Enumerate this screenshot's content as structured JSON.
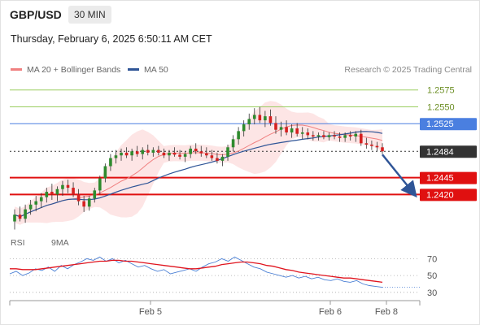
{
  "header": {
    "pair": "GBP/USD",
    "interval": "30 MIN",
    "datetime": "Thursday, February 6, 2025 6:50:11 AM CET"
  },
  "legend": {
    "items": [
      {
        "label": "MA 20 + Bollinger Bands",
        "color": "#f08080"
      },
      {
        "label": "MA 50",
        "color": "#2f5597"
      }
    ],
    "credit": "Research © 2025 Trading Central"
  },
  "rsi_legend": {
    "items": [
      {
        "label": "RSI",
        "color": "#4a7fd4"
      },
      {
        "label": "9MA",
        "color": "#e0141e"
      }
    ]
  },
  "chart_data": [
    {
      "type": "candlestick",
      "title": "GBP/USD",
      "ylim": [
        1.2365,
        1.26
      ],
      "levels": [
        {
          "value": 1.2575,
          "kind": "resistance",
          "color": "#9acd60"
        },
        {
          "value": 1.255,
          "kind": "resistance",
          "color": "#9acd60"
        },
        {
          "value": 1.2525,
          "kind": "pivot",
          "color": "#4a7fe0"
        },
        {
          "value": 1.2484,
          "kind": "last",
          "color": "#333333"
        },
        {
          "value": 1.2445,
          "kind": "target",
          "color": "#e01010"
        },
        {
          "value": 1.242,
          "kind": "target",
          "color": "#e01010"
        }
      ],
      "x_tick_labels": [
        "Feb 5",
        "Feb 6",
        "Feb 8"
      ],
      "forecast_arrow": {
        "from": 1.2484,
        "to": 1.242
      },
      "candles": [
        [
          1.238,
          1.2398,
          1.2368,
          1.239
        ],
        [
          1.239,
          1.2402,
          1.238,
          1.2384
        ],
        [
          1.2384,
          1.2405,
          1.2378,
          1.2398
        ],
        [
          1.2398,
          1.2412,
          1.239,
          1.2405
        ],
        [
          1.2405,
          1.2418,
          1.2395,
          1.241
        ],
        [
          1.241,
          1.2422,
          1.24,
          1.2416
        ],
        [
          1.2416,
          1.243,
          1.2408,
          1.2424
        ],
        [
          1.2424,
          1.2436,
          1.2412,
          1.242
        ],
        [
          1.242,
          1.2432,
          1.241,
          1.2428
        ],
        [
          1.2428,
          1.244,
          1.2418,
          1.2434
        ],
        [
          1.2434,
          1.2442,
          1.2422,
          1.243
        ],
        [
          1.243,
          1.2438,
          1.2416,
          1.242
        ],
        [
          1.242,
          1.2428,
          1.2404,
          1.241
        ],
        [
          1.241,
          1.2418,
          1.2394,
          1.2402
        ],
        [
          1.2402,
          1.2418,
          1.2396,
          1.2414
        ],
        [
          1.2414,
          1.243,
          1.2408,
          1.2426
        ],
        [
          1.2426,
          1.2448,
          1.242,
          1.2444
        ],
        [
          1.2444,
          1.2466,
          1.2438,
          1.2462
        ],
        [
          1.2462,
          1.248,
          1.2455,
          1.2474
        ],
        [
          1.2474,
          1.2486,
          1.2466,
          1.2478
        ],
        [
          1.2478,
          1.2488,
          1.247,
          1.2482
        ],
        [
          1.2482,
          1.249,
          1.2474,
          1.2478
        ],
        [
          1.2478,
          1.2488,
          1.247,
          1.2484
        ],
        [
          1.2484,
          1.2492,
          1.2476,
          1.248
        ],
        [
          1.248,
          1.249,
          1.2472,
          1.2486
        ],
        [
          1.2486,
          1.2494,
          1.2478,
          1.2482
        ],
        [
          1.2482,
          1.249,
          1.2476,
          1.2486
        ],
        [
          1.2486,
          1.2492,
          1.2478,
          1.2482
        ],
        [
          1.2482,
          1.2488,
          1.2474,
          1.2478
        ],
        [
          1.2478,
          1.2486,
          1.247,
          1.2482
        ],
        [
          1.2482,
          1.249,
          1.2476,
          1.2479
        ],
        [
          1.2479,
          1.2486,
          1.2472,
          1.2476
        ],
        [
          1.2476,
          1.2484,
          1.2468,
          1.248
        ],
        [
          1.248,
          1.2492,
          1.2474,
          1.2488
        ],
        [
          1.2488,
          1.2496,
          1.248,
          1.2484
        ],
        [
          1.2484,
          1.2492,
          1.2476,
          1.2481
        ],
        [
          1.2481,
          1.249,
          1.2474,
          1.2478
        ],
        [
          1.2478,
          1.2486,
          1.247,
          1.2474
        ],
        [
          1.2474,
          1.2482,
          1.2466,
          1.247
        ],
        [
          1.247,
          1.248,
          1.2462,
          1.2476
        ],
        [
          1.2476,
          1.2494,
          1.247,
          1.249
        ],
        [
          1.249,
          1.2508,
          1.2484,
          1.2502
        ],
        [
          1.2502,
          1.252,
          1.2494,
          1.2514
        ],
        [
          1.2514,
          1.253,
          1.2506,
          1.2524
        ],
        [
          1.2524,
          1.254,
          1.2516,
          1.2532
        ],
        [
          1.2532,
          1.2548,
          1.2524,
          1.2538
        ],
        [
          1.2538,
          1.255,
          1.2526,
          1.253
        ],
        [
          1.253,
          1.2544,
          1.252,
          1.2536
        ],
        [
          1.2536,
          1.2546,
          1.2522,
          1.2526
        ],
        [
          1.2526,
          1.2536,
          1.251,
          1.2516
        ],
        [
          1.2516,
          1.2528,
          1.2506,
          1.252
        ],
        [
          1.252,
          1.253,
          1.2508,
          1.2512
        ],
        [
          1.2512,
          1.2524,
          1.2504,
          1.2518
        ],
        [
          1.2518,
          1.2526,
          1.2506,
          1.251
        ],
        [
          1.251,
          1.252,
          1.2502,
          1.2512
        ],
        [
          1.2512,
          1.2518,
          1.2502,
          1.2508
        ],
        [
          1.2508,
          1.2514,
          1.25,
          1.2506
        ],
        [
          1.2506,
          1.2512,
          1.25,
          1.2508
        ],
        [
          1.2508,
          1.2514,
          1.2502,
          1.2505
        ],
        [
          1.2505,
          1.2512,
          1.25,
          1.2508
        ],
        [
          1.2508,
          1.2514,
          1.2502,
          1.2506
        ],
        [
          1.2506,
          1.2512,
          1.2498,
          1.2504
        ],
        [
          1.2504,
          1.2512,
          1.2498,
          1.2508
        ],
        [
          1.2508,
          1.2514,
          1.25,
          1.2506
        ],
        [
          1.2506,
          1.2514,
          1.2498,
          1.251
        ],
        [
          1.251,
          1.2516,
          1.2492,
          1.2496
        ],
        [
          1.2496,
          1.2504,
          1.2488,
          1.2494
        ],
        [
          1.2494,
          1.25,
          1.2486,
          1.2492
        ],
        [
          1.2492,
          1.2498,
          1.2484,
          1.249
        ],
        [
          1.249,
          1.2496,
          1.248,
          1.2484
        ]
      ]
    },
    {
      "type": "line",
      "title": "RSI",
      "ylim": [
        25,
        80
      ],
      "yticks": [
        70,
        50,
        30
      ],
      "series": [
        {
          "name": "RSI",
          "values": [
            52,
            55,
            50,
            53,
            58,
            56,
            60,
            55,
            62,
            58,
            63,
            66,
            70,
            68,
            72,
            67,
            70,
            65,
            68,
            64,
            60,
            62,
            58,
            55,
            57,
            52,
            54,
            56,
            58,
            55,
            60,
            64,
            66,
            70,
            67,
            72,
            68,
            64,
            60,
            58,
            54,
            52,
            50,
            48,
            50,
            47,
            49,
            46,
            48,
            45,
            44,
            46,
            43,
            42,
            44,
            40,
            38,
            37,
            36
          ]
        },
        {
          "name": "9MA",
          "values": [
            58,
            58,
            57,
            57,
            57,
            58,
            59,
            60,
            61,
            62,
            63,
            64,
            65,
            66,
            67,
            67,
            68,
            68,
            67,
            67,
            66,
            65,
            64,
            63,
            62,
            61,
            60,
            59,
            58,
            58,
            59,
            60,
            61,
            63,
            64,
            65,
            66,
            66,
            65,
            64,
            62,
            61,
            59,
            57,
            56,
            54,
            53,
            52,
            51,
            50,
            49,
            48,
            47,
            47,
            46,
            45,
            44,
            43,
            42
          ]
        }
      ]
    }
  ]
}
